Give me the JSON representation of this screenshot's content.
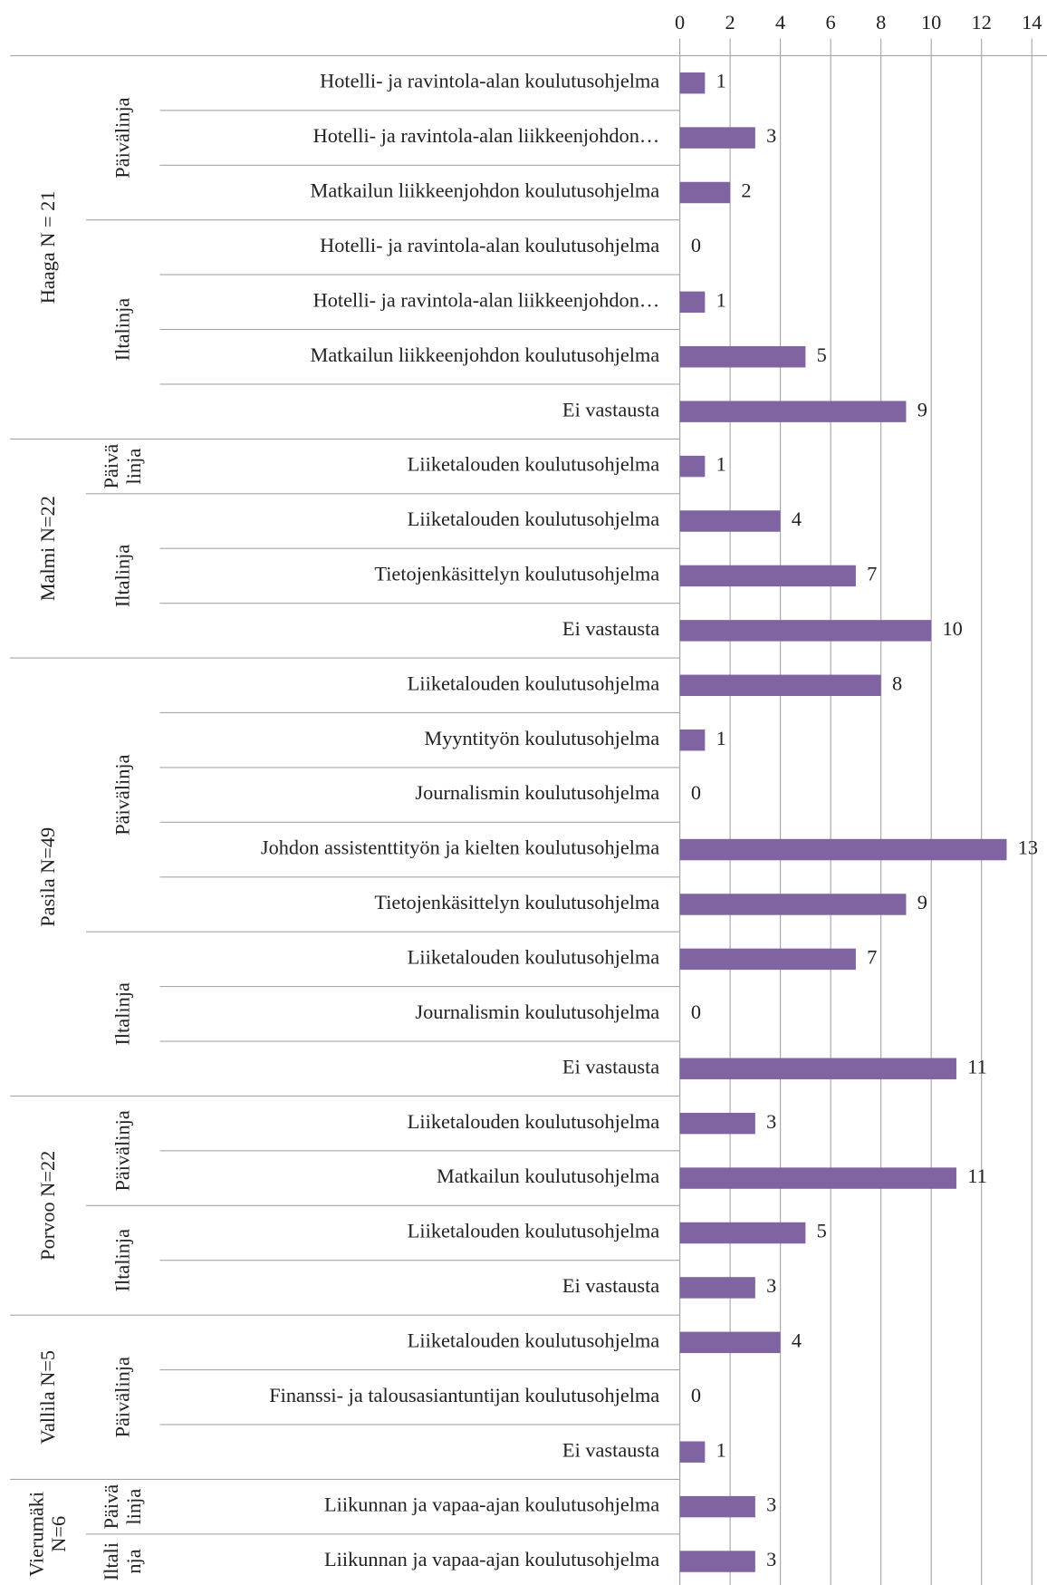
{
  "chart_data": {
    "type": "bar",
    "orientation": "horizontal",
    "color": "#8064a2",
    "xlim": [
      0,
      14
    ],
    "xticks": [
      0,
      2,
      4,
      6,
      8,
      10,
      12,
      14
    ],
    "grid": true,
    "groups": [
      {
        "label": [
          "Haaga N = 21"
        ],
        "lines": [
          {
            "label": [
              "Päivälinja"
            ],
            "categories": [
              "Hotelli- ja ravintola-alan koulutusohjelma",
              "Hotelli- ja ravintola-alan liikkeenjohdon…",
              "Matkailun liikkeenjohdon koulutusohjelma"
            ],
            "values": [
              1,
              3,
              2
            ]
          },
          {
            "label": [
              "Iltalinja"
            ],
            "categories": [
              "Hotelli- ja ravintola-alan koulutusohjelma",
              "Hotelli- ja ravintola-alan liikkeenjohdon…",
              "Matkailun liikkeenjohdon koulutusohjelma",
              "Ei vastausta"
            ],
            "values": [
              0,
              1,
              5,
              9
            ]
          }
        ]
      },
      {
        "label": [
          "Malmi N=22"
        ],
        "lines": [
          {
            "label": [
              "Päivä",
              "linja"
            ],
            "categories": [
              "Liiketalouden koulutusohjelma"
            ],
            "values": [
              1
            ]
          },
          {
            "label": [
              "Iltalinja"
            ],
            "categories": [
              "Liiketalouden koulutusohjelma",
              "Tietojenkäsittelyn koulutusohjelma",
              "Ei vastausta"
            ],
            "values": [
              4,
              7,
              10
            ]
          }
        ]
      },
      {
        "label": [
          "Pasila N=49"
        ],
        "lines": [
          {
            "label": [
              "Päivälinja"
            ],
            "categories": [
              "Liiketalouden koulutusohjelma",
              "Myyntityön koulutusohjelma",
              "Journalismin koulutusohjelma",
              "Johdon assistenttityön ja kielten koulutusohjelma",
              "Tietojenkäsittelyn koulutusohjelma"
            ],
            "values": [
              8,
              1,
              0,
              13,
              9
            ]
          },
          {
            "label": [
              "Iltalinja"
            ],
            "categories": [
              "Liiketalouden koulutusohjelma",
              "Journalismin koulutusohjelma",
              "Ei vastausta"
            ],
            "values": [
              7,
              0,
              11
            ]
          }
        ]
      },
      {
        "label": [
          "Porvoo N=22"
        ],
        "lines": [
          {
            "label": [
              "Päivälinja"
            ],
            "categories": [
              "Liiketalouden koulutusohjelma",
              "Matkailun koulutusohjelma"
            ],
            "values": [
              3,
              11
            ]
          },
          {
            "label": [
              "Iltalinja"
            ],
            "categories": [
              "Liiketalouden koulutusohjelma",
              "Ei vastausta"
            ],
            "values": [
              5,
              3
            ]
          }
        ]
      },
      {
        "label": [
          "Vallila N=5"
        ],
        "lines": [
          {
            "label": [
              "Päivälinja"
            ],
            "categories": [
              "Liiketalouden koulutusohjelma",
              "Finanssi- ja talousasiantuntijan koulutusohjelma",
              "Ei vastausta"
            ],
            "values": [
              4,
              0,
              1
            ]
          }
        ]
      },
      {
        "label": [
          "Vierumäki",
          "N=6"
        ],
        "lines": [
          {
            "label": [
              "Päivä",
              "linja"
            ],
            "categories": [
              "Liikunnan ja vapaa-ajan koulutusohjelma"
            ],
            "values": [
              3
            ]
          },
          {
            "label": [
              "Iltali",
              "nja"
            ],
            "categories": [
              "Liikunnan ja vapaa-ajan koulutusohjelma"
            ],
            "values": [
              3
            ]
          }
        ]
      }
    ]
  }
}
